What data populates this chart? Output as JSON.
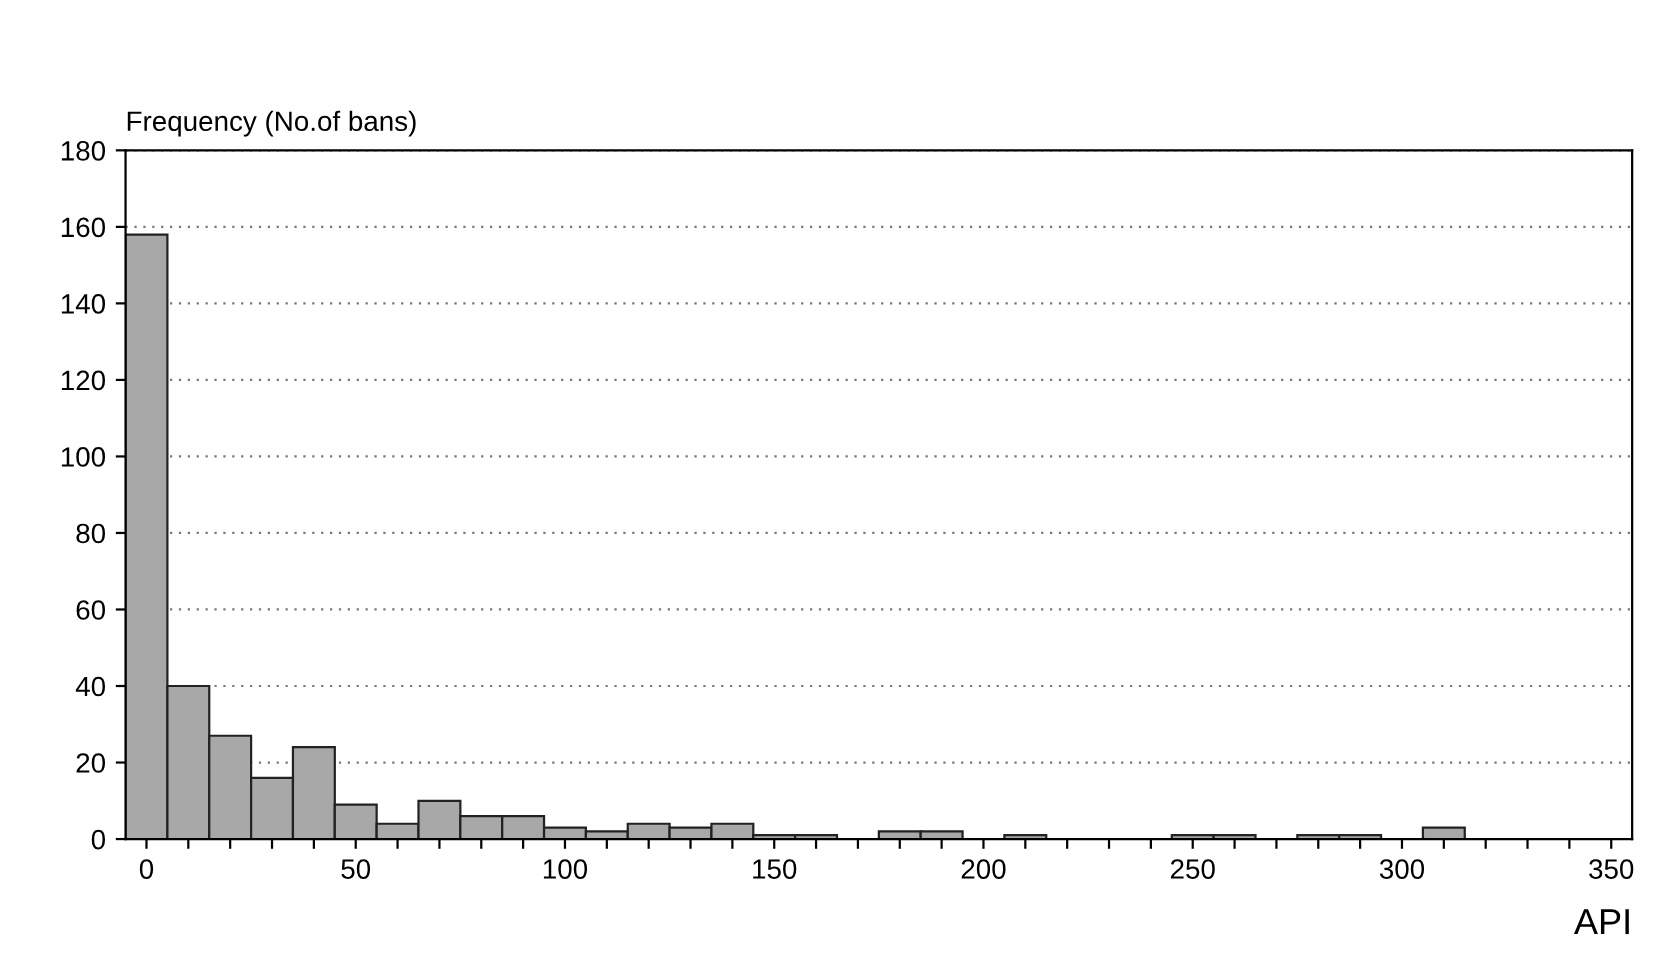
{
  "chart_data": {
    "type": "histogram",
    "ylabel": "Frequency (No.of bans)",
    "xlabel": "API",
    "bins": [
      -5,
      5,
      15,
      25,
      35,
      45,
      55,
      65,
      75,
      85,
      95,
      105,
      115,
      125,
      135,
      145,
      155,
      165,
      175,
      185,
      195,
      205,
      215,
      225,
      235,
      245,
      255,
      265,
      275,
      285,
      295,
      305,
      315,
      325,
      335,
      345,
      355
    ],
    "values": [
      158,
      40,
      27,
      16,
      24,
      9,
      4,
      10,
      6,
      6,
      3,
      2,
      4,
      3,
      4,
      1,
      1,
      0,
      2,
      2,
      0,
      1,
      0,
      0,
      0,
      1,
      1,
      0,
      1,
      1,
      0,
      3,
      0,
      0,
      0,
      0
    ],
    "color": "#a8a8a8",
    "xlim": [
      -5,
      355
    ],
    "xticks": [
      0,
      {
        "value": 10,
        "label": null
      },
      {
        "value": 20,
        "label": null
      },
      {
        "value": 30,
        "label": null
      },
      {
        "value": 40,
        "label": null
      },
      50,
      {
        "value": 60,
        "label": null
      },
      {
        "value": 70,
        "label": null
      },
      {
        "value": 80,
        "label": null
      },
      {
        "value": 90,
        "label": null
      },
      100,
      {
        "value": 110,
        "label": null
      },
      {
        "value": 120,
        "label": null
      },
      {
        "value": 130,
        "label": null
      },
      {
        "value": 140,
        "label": null
      },
      150,
      {
        "value": 160,
        "label": null
      },
      {
        "value": 170,
        "label": null
      },
      {
        "value": 180,
        "label": null
      },
      {
        "value": 190,
        "label": null
      },
      200,
      {
        "value": 210,
        "label": null
      },
      {
        "value": 220,
        "label": null
      },
      {
        "value": 230,
        "label": null
      },
      {
        "value": 240,
        "label": null
      },
      250,
      {
        "value": 260,
        "label": null
      },
      {
        "value": 270,
        "label": null
      },
      {
        "value": 280,
        "label": null
      },
      {
        "value": 290,
        "label": null
      },
      300,
      {
        "value": 310,
        "label": null
      },
      {
        "value": 320,
        "label": null
      },
      {
        "value": 330,
        "label": null
      },
      {
        "value": 340,
        "label": null
      },
      350
    ],
    "ylim": [
      0,
      180
    ],
    "yticks": [
      0,
      20,
      40,
      60,
      80,
      100,
      120,
      140,
      160,
      180
    ],
    "grid": "y"
  }
}
